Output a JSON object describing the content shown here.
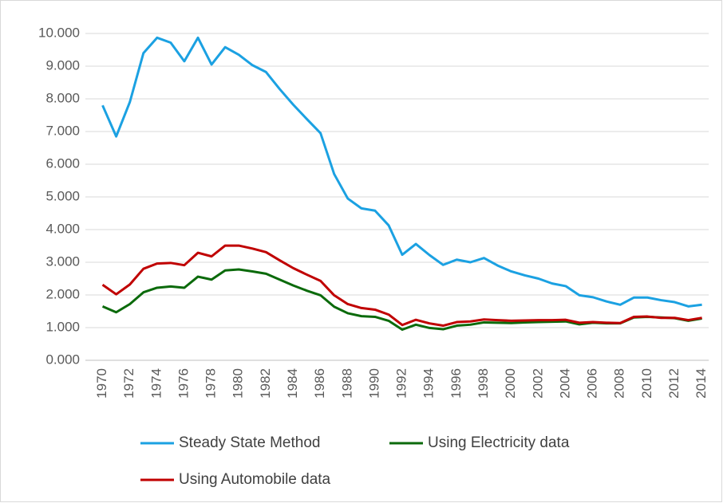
{
  "chart_data": {
    "type": "line",
    "categories": [
      "1970",
      null,
      "1972",
      null,
      "1974",
      null,
      "1976",
      null,
      "1978",
      null,
      "1980",
      null,
      "1982",
      null,
      "1984",
      null,
      "1986",
      null,
      "1988",
      null,
      "1990",
      null,
      "1992",
      null,
      "1994",
      null,
      "1996",
      null,
      "1998",
      null,
      "2000",
      null,
      "2002",
      null,
      "2004",
      null,
      "2006",
      null,
      "2008",
      null,
      "2010",
      null,
      "2012",
      null,
      "2014"
    ],
    "series": [
      {
        "name": "Steady State Method",
        "color": "#1ba1e2",
        "values": [
          7800,
          6850,
          7900,
          9400,
          9870,
          9720,
          9150,
          9870,
          9050,
          9580,
          9350,
          9030,
          8820,
          8300,
          7820,
          7380,
          6950,
          5700,
          4950,
          4650,
          4580,
          4130,
          3230,
          3560,
          3220,
          2920,
          3080,
          3000,
          3130,
          2900,
          2720,
          2600,
          2500,
          2350,
          2270,
          1990,
          1930,
          1800,
          1700,
          1920,
          1920,
          1840,
          1780,
          1650,
          1700
        ]
      },
      {
        "name": "Using Electricity data",
        "color": "#0b6a0b",
        "values": [
          1650,
          1470,
          1720,
          2080,
          2220,
          2260,
          2220,
          2560,
          2470,
          2750,
          2780,
          2720,
          2650,
          2470,
          2290,
          2130,
          1990,
          1640,
          1440,
          1350,
          1330,
          1210,
          940,
          1090,
          990,
          950,
          1060,
          1090,
          1160,
          1150,
          1140,
          1160,
          1170,
          1180,
          1190,
          1100,
          1150,
          1130,
          1130,
          1310,
          1330,
          1310,
          1290,
          1210,
          1280
        ]
      },
      {
        "name": "Using Automobile data",
        "color": "#c00000",
        "values": [
          2310,
          2020,
          2320,
          2800,
          2960,
          2980,
          2910,
          3290,
          3180,
          3510,
          3510,
          3420,
          3310,
          3060,
          2820,
          2620,
          2430,
          1990,
          1720,
          1600,
          1550,
          1400,
          1080,
          1240,
          1130,
          1060,
          1170,
          1190,
          1250,
          1230,
          1210,
          1220,
          1230,
          1230,
          1240,
          1150,
          1170,
          1150,
          1140,
          1330,
          1340,
          1300,
          1300,
          1230,
          1300
        ]
      }
    ],
    "ylim": [
      0,
      10000
    ],
    "yticks": [
      {
        "value": 0,
        "label": "0.000"
      },
      {
        "value": 1000,
        "label": "1.000"
      },
      {
        "value": 2000,
        "label": "2.000"
      },
      {
        "value": 3000,
        "label": "3.000"
      },
      {
        "value": 4000,
        "label": "4.000"
      },
      {
        "value": 5000,
        "label": "5.000"
      },
      {
        "value": 6000,
        "label": "6.000"
      },
      {
        "value": 7000,
        "label": "7.000"
      },
      {
        "value": 8000,
        "label": "8.000"
      },
      {
        "value": 9000,
        "label": "9.000"
      },
      {
        "value": 10000,
        "label": "10.000"
      }
    ],
    "grid": true
  }
}
